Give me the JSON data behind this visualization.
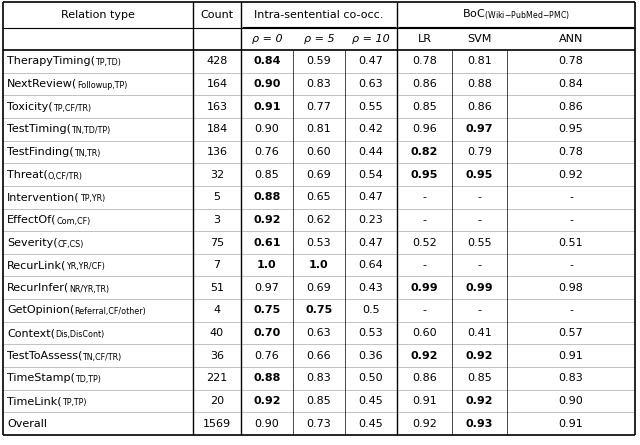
{
  "rows": [
    {
      "name": "TherapyTiming",
      "sub": "TP,TD",
      "count": "428",
      "r0": "0.84",
      "r5": "0.59",
      "r10": "0.47",
      "lr": "0.78",
      "svm": "0.81",
      "ann": "0.78",
      "bold_r0": true,
      "bold_r5": false,
      "bold_r10": false,
      "bold_lr": false,
      "bold_svm": false,
      "bold_ann": false
    },
    {
      "name": "NextReview",
      "sub": "Followup,TP",
      "count": "164",
      "r0": "0.90",
      "r5": "0.83",
      "r10": "0.63",
      "lr": "0.86",
      "svm": "0.88",
      "ann": "0.84",
      "bold_r0": true,
      "bold_r5": false,
      "bold_r10": false,
      "bold_lr": false,
      "bold_svm": false,
      "bold_ann": false
    },
    {
      "name": "Toxicity",
      "sub": "TP,CF/TR",
      "count": "163",
      "r0": "0.91",
      "r5": "0.77",
      "r10": "0.55",
      "lr": "0.85",
      "svm": "0.86",
      "ann": "0.86",
      "bold_r0": true,
      "bold_r5": false,
      "bold_r10": false,
      "bold_lr": false,
      "bold_svm": false,
      "bold_ann": false
    },
    {
      "name": "TestTiming",
      "sub": "TN,TD/TP",
      "count": "184",
      "r0": "0.90",
      "r5": "0.81",
      "r10": "0.42",
      "lr": "0.96",
      "svm": "0.97",
      "ann": "0.95",
      "bold_r0": false,
      "bold_r5": false,
      "bold_r10": false,
      "bold_lr": false,
      "bold_svm": true,
      "bold_ann": false
    },
    {
      "name": "TestFinding",
      "sub": "TN,TR",
      "count": "136",
      "r0": "0.76",
      "r5": "0.60",
      "r10": "0.44",
      "lr": "0.82",
      "svm": "0.79",
      "ann": "0.78",
      "bold_r0": false,
      "bold_r5": false,
      "bold_r10": false,
      "bold_lr": true,
      "bold_svm": false,
      "bold_ann": false
    },
    {
      "name": "Threat",
      "sub": "O,CF/TR",
      "count": "32",
      "r0": "0.85",
      "r5": "0.69",
      "r10": "0.54",
      "lr": "0.95",
      "svm": "0.95",
      "ann": "0.92",
      "bold_r0": false,
      "bold_r5": false,
      "bold_r10": false,
      "bold_lr": true,
      "bold_svm": true,
      "bold_ann": false
    },
    {
      "name": "Intervention",
      "sub": "TP,YR",
      "count": "5",
      "r0": "0.88",
      "r5": "0.65",
      "r10": "0.47",
      "lr": "-",
      "svm": "-",
      "ann": "-",
      "bold_r0": true,
      "bold_r5": false,
      "bold_r10": false,
      "bold_lr": false,
      "bold_svm": false,
      "bold_ann": false
    },
    {
      "name": "EffectOf",
      "sub": "Com,CF",
      "count": "3",
      "r0": "0.92",
      "r5": "0.62",
      "r10": "0.23",
      "lr": "-",
      "svm": "-",
      "ann": "-",
      "bold_r0": true,
      "bold_r5": false,
      "bold_r10": false,
      "bold_lr": false,
      "bold_svm": false,
      "bold_ann": false
    },
    {
      "name": "Severity",
      "sub": "CF,CS",
      "count": "75",
      "r0": "0.61",
      "r5": "0.53",
      "r10": "0.47",
      "lr": "0.52",
      "svm": "0.55",
      "ann": "0.51",
      "bold_r0": true,
      "bold_r5": false,
      "bold_r10": false,
      "bold_lr": false,
      "bold_svm": false,
      "bold_ann": false
    },
    {
      "name": "RecurLink",
      "sub": "YR,YR/CF",
      "count": "7",
      "r0": "1.0",
      "r5": "1.0",
      "r10": "0.64",
      "lr": "-",
      "svm": "-",
      "ann": "-",
      "bold_r0": true,
      "bold_r5": true,
      "bold_r10": false,
      "bold_lr": false,
      "bold_svm": false,
      "bold_ann": false
    },
    {
      "name": "RecurInfer",
      "sub": "NR/YR,TR",
      "count": "51",
      "r0": "0.97",
      "r5": "0.69",
      "r10": "0.43",
      "lr": "0.99",
      "svm": "0.99",
      "ann": "0.98",
      "bold_r0": false,
      "bold_r5": false,
      "bold_r10": false,
      "bold_lr": true,
      "bold_svm": true,
      "bold_ann": false
    },
    {
      "name": "GetOpinion",
      "sub": "Referral,CF/other",
      "count": "4",
      "r0": "0.75",
      "r5": "0.75",
      "r10": "0.5",
      "lr": "-",
      "svm": "-",
      "ann": "-",
      "bold_r0": true,
      "bold_r5": true,
      "bold_r10": false,
      "bold_lr": false,
      "bold_svm": false,
      "bold_ann": false
    },
    {
      "name": "Context",
      "sub": "Dis,DisCont",
      "count": "40",
      "r0": "0.70",
      "r5": "0.63",
      "r10": "0.53",
      "lr": "0.60",
      "svm": "0.41",
      "ann": "0.57",
      "bold_r0": true,
      "bold_r5": false,
      "bold_r10": false,
      "bold_lr": false,
      "bold_svm": false,
      "bold_ann": false
    },
    {
      "name": "TestToAssess",
      "sub": "TN,CF/TR",
      "count": "36",
      "r0": "0.76",
      "r5": "0.66",
      "r10": "0.36",
      "lr": "0.92",
      "svm": "0.92",
      "ann": "0.91",
      "bold_r0": false,
      "bold_r5": false,
      "bold_r10": false,
      "bold_lr": true,
      "bold_svm": true,
      "bold_ann": false
    },
    {
      "name": "TimeStamp",
      "sub": "TD,TP",
      "count": "221",
      "r0": "0.88",
      "r5": "0.83",
      "r10": "0.50",
      "lr": "0.86",
      "svm": "0.85",
      "ann": "0.83",
      "bold_r0": true,
      "bold_r5": false,
      "bold_r10": false,
      "bold_lr": false,
      "bold_svm": false,
      "bold_ann": false
    },
    {
      "name": "TimeLink",
      "sub": "TP,TP",
      "count": "20",
      "r0": "0.92",
      "r5": "0.85",
      "r10": "0.45",
      "lr": "0.91",
      "svm": "0.92",
      "ann": "0.90",
      "bold_r0": true,
      "bold_r5": false,
      "bold_r10": false,
      "bold_lr": false,
      "bold_svm": true,
      "bold_ann": false
    }
  ],
  "overall": {
    "name": "Overall",
    "count": "1569",
    "r0": "0.90",
    "r5": "0.73",
    "r10": "0.45",
    "lr": "0.92",
    "svm": "0.93",
    "ann": "0.91",
    "bold_r0": false,
    "bold_r5": false,
    "bold_r10": false,
    "bold_lr": false,
    "bold_svm": true,
    "bold_ann": false
  },
  "font_size_main": 8.0,
  "font_size_sub": 5.8,
  "font_size_header": 8.0
}
